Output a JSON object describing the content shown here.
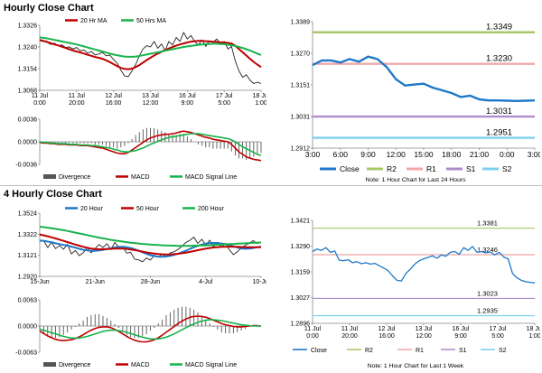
{
  "hourly_title": "Hourly Close Chart",
  "four_hourly_title": "4 Hourly Close Chart",
  "colors": {
    "close": "#1f78c8",
    "ma20": "#c00000",
    "ma50": "#17b34a",
    "ma200": "#17b34a",
    "hour20": "#1f78c8",
    "r2": "#a8c868",
    "r1": "#f0a8a8",
    "s1": "#b08ccf",
    "s2": "#7fd0ef",
    "divergence": "#555555",
    "macd": "#c00000",
    "signal": "#17b34a"
  },
  "chart_data": [
    {
      "id": "hourly_ma",
      "type": "line",
      "legend": [
        "20 Hr MA",
        "50 Hrs MA"
      ],
      "y_ticks": [
        "1.3326",
        "1.3240",
        "1.3154",
        "1.3068"
      ],
      "ylim": [
        1.3068,
        1.3326
      ],
      "x_ticks": [
        "11 Jul\n0:00",
        "11 Jul\n20:00",
        "12 Jul\n16:00",
        "13 Jul\n12:00",
        "16 Jul\n9:00",
        "17 Jul\n5:00",
        "18 Jul\n1:00"
      ],
      "price": [
        1.3265,
        1.3262,
        1.3258,
        1.325,
        1.3255,
        1.3245,
        1.3248,
        1.3238,
        1.324,
        1.3232,
        1.3238,
        1.3225,
        1.3228,
        1.3215,
        1.3222,
        1.3208,
        1.3212,
        1.3218,
        1.3205,
        1.3208,
        1.319,
        1.3175,
        1.3148,
        1.3125,
        1.3122,
        1.3145,
        1.317,
        1.3205,
        1.3232,
        1.3245,
        1.324,
        1.3262,
        1.3235,
        1.3252,
        1.3225,
        1.3262,
        1.3248,
        1.3278,
        1.3262,
        1.3298,
        1.3272,
        1.3285,
        1.3262,
        1.3248,
        1.3268,
        1.3242,
        1.3265,
        1.3258,
        1.3272,
        1.325,
        1.3262,
        1.3232,
        1.3242,
        1.3185,
        1.3145,
        1.312,
        1.313,
        1.3108,
        1.3095,
        1.31,
        1.3095
      ],
      "ma20": [
        1.3268,
        1.3264,
        1.326,
        1.3255,
        1.325,
        1.3246,
        1.3241,
        1.3236,
        1.3231,
        1.3226,
        1.3222,
        1.3218,
        1.3214,
        1.3209,
        1.3205,
        1.32,
        1.3197,
        1.3193,
        1.3187,
        1.318,
        1.3172,
        1.3164,
        1.3157,
        1.3153,
        1.3152,
        1.3154,
        1.316,
        1.3168,
        1.3178,
        1.3188,
        1.3197,
        1.3206,
        1.3214,
        1.3221,
        1.3228,
        1.3234,
        1.324,
        1.3245,
        1.325,
        1.3254,
        1.3258,
        1.3261,
        1.3263,
        1.3264,
        1.3264,
        1.3263,
        1.3262,
        1.3261,
        1.326,
        1.3259,
        1.3258,
        1.3256,
        1.3254,
        1.3245,
        1.3232,
        1.3219,
        1.3206,
        1.3193,
        1.3181,
        1.317,
        1.316
      ],
      "ma50": [
        1.3278,
        1.3276,
        1.3274,
        1.3271,
        1.3268,
        1.3265,
        1.3262,
        1.3259,
        1.3256,
        1.3253,
        1.325,
        1.3246,
        1.3242,
        1.3238,
        1.3234,
        1.323,
        1.3226,
        1.3222,
        1.3218,
        1.3214,
        1.321,
        1.3207,
        1.3204,
        1.3202,
        1.3201,
        1.3201,
        1.3202,
        1.3204,
        1.3207,
        1.321,
        1.3213,
        1.3216,
        1.3219,
        1.3222,
        1.3225,
        1.3228,
        1.3231,
        1.3234,
        1.3237,
        1.324,
        1.3242,
        1.3244,
        1.3246,
        1.3248,
        1.325,
        1.3251,
        1.3252,
        1.3253,
        1.3253,
        1.3252,
        1.3251,
        1.3249,
        1.3247,
        1.3244,
        1.324,
        1.3236,
        1.3231,
        1.3226,
        1.322,
        1.3214,
        1.3208
      ]
    },
    {
      "id": "hourly_macd",
      "type": "bar+line",
      "legend": [
        "Divergence",
        "MACD",
        "MACD Signal Line"
      ],
      "y_ticks": [
        "0.0036",
        "0.0000",
        "-0.0036"
      ],
      "ylim": [
        -0.0036,
        0.0036
      ],
      "macd": [
        -0.0001,
        -0.0002,
        -0.0002,
        -0.0003,
        -0.0003,
        -0.0004,
        -0.0004,
        -0.0004,
        -0.0005,
        -0.0005,
        -0.0005,
        -0.0006,
        -0.0006,
        -0.0006,
        -0.0007,
        -0.0008,
        -0.0009,
        -0.001,
        -0.0012,
        -0.0014,
        -0.0016,
        -0.0018,
        -0.0019,
        -0.0019,
        -0.0017,
        -0.0013,
        -0.0009,
        -0.0005,
        -0.0001,
        0.0003,
        0.0006,
        0.0008,
        0.001,
        0.0011,
        0.0012,
        0.0012,
        0.0013,
        0.0014,
        0.0016,
        0.0017,
        0.0016,
        0.0015,
        0.0013,
        0.0011,
        0.0009,
        0.0007,
        0.0006,
        0.0004,
        0.0003,
        0.0002,
        0.0001,
        0.0,
        -0.0004,
        -0.001,
        -0.0016,
        -0.002,
        -0.0024,
        -0.0026,
        -0.0028,
        -0.0029,
        -0.003
      ],
      "signal": [
        0.0,
        -0.0001,
        -0.0001,
        -0.0002,
        -0.0002,
        -0.0003,
        -0.0003,
        -0.0003,
        -0.0004,
        -0.0004,
        -0.0004,
        -0.0005,
        -0.0005,
        -0.0005,
        -0.0006,
        -0.0006,
        -0.0007,
        -0.0008,
        -0.0009,
        -0.001,
        -0.0012,
        -0.0013,
        -0.0015,
        -0.0016,
        -0.0016,
        -0.0015,
        -0.0014,
        -0.0012,
        -0.001,
        -0.0007,
        -0.0004,
        -0.0002,
        0.0001,
        0.0003,
        0.0005,
        0.0007,
        0.0008,
        0.0009,
        0.001,
        0.0011,
        0.0012,
        0.0013,
        0.0013,
        0.0013,
        0.0012,
        0.0011,
        0.001,
        0.0009,
        0.0008,
        0.0007,
        0.0006,
        0.0005,
        0.0003,
        0.0,
        -0.0004,
        -0.0008,
        -0.0011,
        -0.0014,
        -0.0017,
        -0.002,
        -0.0022
      ]
    },
    {
      "id": "hourly_close_levels",
      "type": "line",
      "y_ticks": [
        "1.3389",
        "1.3270",
        "1.3151",
        "1.3031",
        "1.2912"
      ],
      "ylim": [
        1.2912,
        1.3389
      ],
      "x_ticks": [
        "3:00",
        "6:00",
        "9:00",
        "12:00",
        "15:00",
        "18:00",
        "21:00",
        "0:00",
        "3:00"
      ],
      "levels": [
        {
          "name": "R2",
          "value": 1.3349,
          "label": "1.3349"
        },
        {
          "name": "R1",
          "value": 1.323,
          "label": "1.3230"
        },
        {
          "name": "S1",
          "value": 1.3031,
          "label": "1.3031"
        },
        {
          "name": "S2",
          "value": 1.2951,
          "label": "1.2951"
        }
      ],
      "close": [
        1.3225,
        1.3243,
        1.3243,
        1.3235,
        1.3248,
        1.3238,
        1.3257,
        1.3248,
        1.3218,
        1.3172,
        1.3148,
        1.3152,
        1.3155,
        1.314,
        1.313,
        1.312,
        1.3105,
        1.311,
        1.3096,
        1.3092,
        1.3092,
        1.3091,
        1.309,
        1.3091,
        1.3092
      ],
      "legend": [
        "Close",
        "R2",
        "R1",
        "S1",
        "S2"
      ],
      "note": "Note: 1 Hour Chart for Last 24 Hours"
    },
    {
      "id": "four_hour_ma",
      "type": "line",
      "legend": [
        "20 Hour",
        "50 Hour",
        "200 Hour"
      ],
      "y_ticks": [
        "1.3524",
        "1.3322",
        "1.3121",
        "1.2920"
      ],
      "ylim": [
        1.292,
        1.3524
      ],
      "x_ticks": [
        "15-Jun",
        "21-Jun",
        "28-Jun",
        "4-Jul",
        "10-Jul"
      ],
      "price": [
        1.3255,
        1.326,
        1.3195,
        1.3245,
        1.3185,
        1.3215,
        1.3178,
        1.3228,
        1.3135,
        1.3168,
        1.3118,
        1.3145,
        1.3195,
        1.3145,
        1.3185,
        1.3225,
        1.3195,
        1.3232,
        1.3175,
        1.3245,
        1.3198,
        1.3205,
        1.3142,
        1.315,
        1.3085,
        1.3078,
        1.306,
        1.3095,
        1.3075,
        1.3122,
        1.3105,
        1.3132,
        1.3105,
        1.3145,
        1.3155,
        1.3178,
        1.3208,
        1.3245,
        1.3265,
        1.3295,
        1.3235,
        1.3275,
        1.3218,
        1.3265,
        1.3205,
        1.3245,
        1.3198,
        1.3235,
        1.3172,
        1.3128,
        1.3155,
        1.319,
        1.3218,
        1.3235,
        1.3262,
        1.3235,
        1.3245
      ],
      "hour20": [
        1.3262,
        1.326,
        1.3252,
        1.3246,
        1.3236,
        1.3228,
        1.322,
        1.3214,
        1.3204,
        1.3194,
        1.3183,
        1.3174,
        1.3168,
        1.3164,
        1.3164,
        1.3168,
        1.3174,
        1.3182,
        1.3189,
        1.3196,
        1.3201,
        1.3202,
        1.3199,
        1.3191,
        1.318,
        1.3165,
        1.315,
        1.3136,
        1.3123,
        1.3114,
        1.3108,
        1.3108,
        1.311,
        1.3116,
        1.3125,
        1.3137,
        1.315,
        1.3165,
        1.3182,
        1.3198,
        1.3212,
        1.3224,
        1.3233,
        1.3238,
        1.3239,
        1.3238,
        1.3234,
        1.3228,
        1.3219,
        1.3207,
        1.3195,
        1.3187,
        1.3184,
        1.3186,
        1.3191,
        1.3198,
        1.3204
      ],
      "hour50": [
        1.332,
        1.3312,
        1.3303,
        1.3293,
        1.3282,
        1.3271,
        1.3259,
        1.3248,
        1.3236,
        1.3224,
        1.3213,
        1.3202,
        1.3193,
        1.3186,
        1.3181,
        1.3179,
        1.3179,
        1.3181,
        1.3183,
        1.3185,
        1.3186,
        1.3185,
        1.3182,
        1.3177,
        1.3171,
        1.3164,
        1.3156,
        1.3149,
        1.3143,
        1.3138,
        1.3134,
        1.3131,
        1.313,
        1.313,
        1.3132,
        1.3136,
        1.3141,
        1.3147,
        1.3154,
        1.3162,
        1.317,
        1.3178,
        1.3185,
        1.3191,
        1.3196,
        1.3199,
        1.3202,
        1.3203,
        1.3204,
        1.3203,
        1.3202,
        1.32,
        1.3199,
        1.3198,
        1.3198,
        1.3198,
        1.3199
      ],
      "hour200": [
        1.3395,
        1.339,
        1.3385,
        1.338,
        1.3374,
        1.3368,
        1.3361,
        1.3354,
        1.3346,
        1.3338,
        1.333,
        1.3322,
        1.3314,
        1.3306,
        1.3298,
        1.329,
        1.3283,
        1.3276,
        1.3269,
        1.3263,
        1.3257,
        1.3252,
        1.3247,
        1.3242,
        1.3238,
        1.3234,
        1.323,
        1.3227,
        1.3224,
        1.3221,
        1.3219,
        1.3217,
        1.3215,
        1.3214,
        1.3213,
        1.3212,
        1.3212,
        1.3212,
        1.3212,
        1.3213,
        1.3214,
        1.3215,
        1.3216,
        1.3218,
        1.322,
        1.3222,
        1.3224,
        1.3226,
        1.3228,
        1.323,
        1.3232,
        1.3234,
        1.3236,
        1.3238,
        1.324,
        1.3242,
        1.3244
      ]
    },
    {
      "id": "four_hour_macd",
      "type": "bar+line",
      "legend": [
        "Divergence",
        "MACD",
        "MACD Signal Line"
      ],
      "y_ticks": [
        "0.0063",
        "0.0000",
        "-0.0063"
      ],
      "ylim": [
        -0.0063,
        0.0063
      ],
      "macd": [
        -0.0012,
        -0.0018,
        -0.0024,
        -0.0028,
        -0.0032,
        -0.0034,
        -0.0035,
        -0.0034,
        -0.0033,
        -0.003,
        -0.0026,
        -0.0021,
        -0.0015,
        -0.001,
        -0.0006,
        -0.0003,
        -0.0002,
        -0.0002,
        -0.0004,
        -0.0008,
        -0.0013,
        -0.0019,
        -0.0025,
        -0.003,
        -0.0034,
        -0.0037,
        -0.0038,
        -0.0038,
        -0.0036,
        -0.0033,
        -0.0028,
        -0.0022,
        -0.0015,
        -0.0008,
        -0.0001,
        0.0006,
        0.0012,
        0.0017,
        0.0021,
        0.0023,
        0.0024,
        0.0023,
        0.0021,
        0.0018,
        0.0014,
        0.001,
        0.0006,
        0.0003,
        0.0001,
        -0.0001,
        -0.0002,
        -0.0002,
        -0.0001,
        0.0,
        0.0001,
        0.0001,
        0.0
      ],
      "signal": [
        -0.0008,
        -0.001,
        -0.0013,
        -0.0016,
        -0.0019,
        -0.0022,
        -0.0025,
        -0.0027,
        -0.0029,
        -0.0029,
        -0.0029,
        -0.0027,
        -0.0025,
        -0.0022,
        -0.0019,
        -0.0016,
        -0.0013,
        -0.0011,
        -0.001,
        -0.001,
        -0.0011,
        -0.0013,
        -0.0015,
        -0.0018,
        -0.0021,
        -0.0024,
        -0.0027,
        -0.0029,
        -0.0031,
        -0.0031,
        -0.0031,
        -0.0029,
        -0.0027,
        -0.0023,
        -0.0019,
        -0.0014,
        -0.0009,
        -0.0004,
        0.0001,
        0.0005,
        0.0009,
        0.0012,
        0.0014,
        0.0015,
        0.0015,
        0.0014,
        0.0013,
        0.0011,
        0.0009,
        0.0007,
        0.0005,
        0.0003,
        0.0002,
        0.0001,
        0.0,
        0.0,
        0.0
      ]
    },
    {
      "id": "four_hour_close_levels",
      "type": "line",
      "y_ticks": [
        "1.3421",
        "1.3290",
        "1.3159",
        "1.3027",
        "1.2896"
      ],
      "ylim": [
        1.2896,
        1.3421
      ],
      "x_ticks": [
        "11 Jul\n0:00",
        "11 Jul\n20:00",
        "12 Jul\n16:00",
        "13 Jul\n12:00",
        "16 Jul\n9:00",
        "17 Jul\n5:00",
        "18 Jul\n1:00"
      ],
      "levels": [
        {
          "name": "R2",
          "value": 1.3381,
          "label": "1.3381"
        },
        {
          "name": "R1",
          "value": 1.3246,
          "label": "1.3246"
        },
        {
          "name": "S1",
          "value": 1.3023,
          "label": "1.3023"
        },
        {
          "name": "S2",
          "value": 1.2935,
          "label": "1.2935"
        }
      ],
      "close": [
        1.3262,
        1.3275,
        1.3268,
        1.3282,
        1.3258,
        1.3265,
        1.3218,
        1.3215,
        1.322,
        1.3205,
        1.321,
        1.32,
        1.3205,
        1.3198,
        1.3202,
        1.319,
        1.3178,
        1.3165,
        1.3138,
        1.3115,
        1.3112,
        1.315,
        1.3172,
        1.3198,
        1.3215,
        1.3225,
        1.3232,
        1.324,
        1.3228,
        1.3245,
        1.3238,
        1.3258,
        1.3262,
        1.3248,
        1.3282,
        1.3268,
        1.3288,
        1.3258,
        1.3262,
        1.3255,
        1.326,
        1.3245,
        1.3258,
        1.3235,
        1.3225,
        1.315,
        1.3128,
        1.3115,
        1.3108,
        1.3105,
        1.3102
      ],
      "legend": [
        "Close",
        "R2",
        "R1",
        "S1",
        "S2"
      ],
      "note": "Note: 1 Hour Chart for Last 1 Week"
    }
  ]
}
